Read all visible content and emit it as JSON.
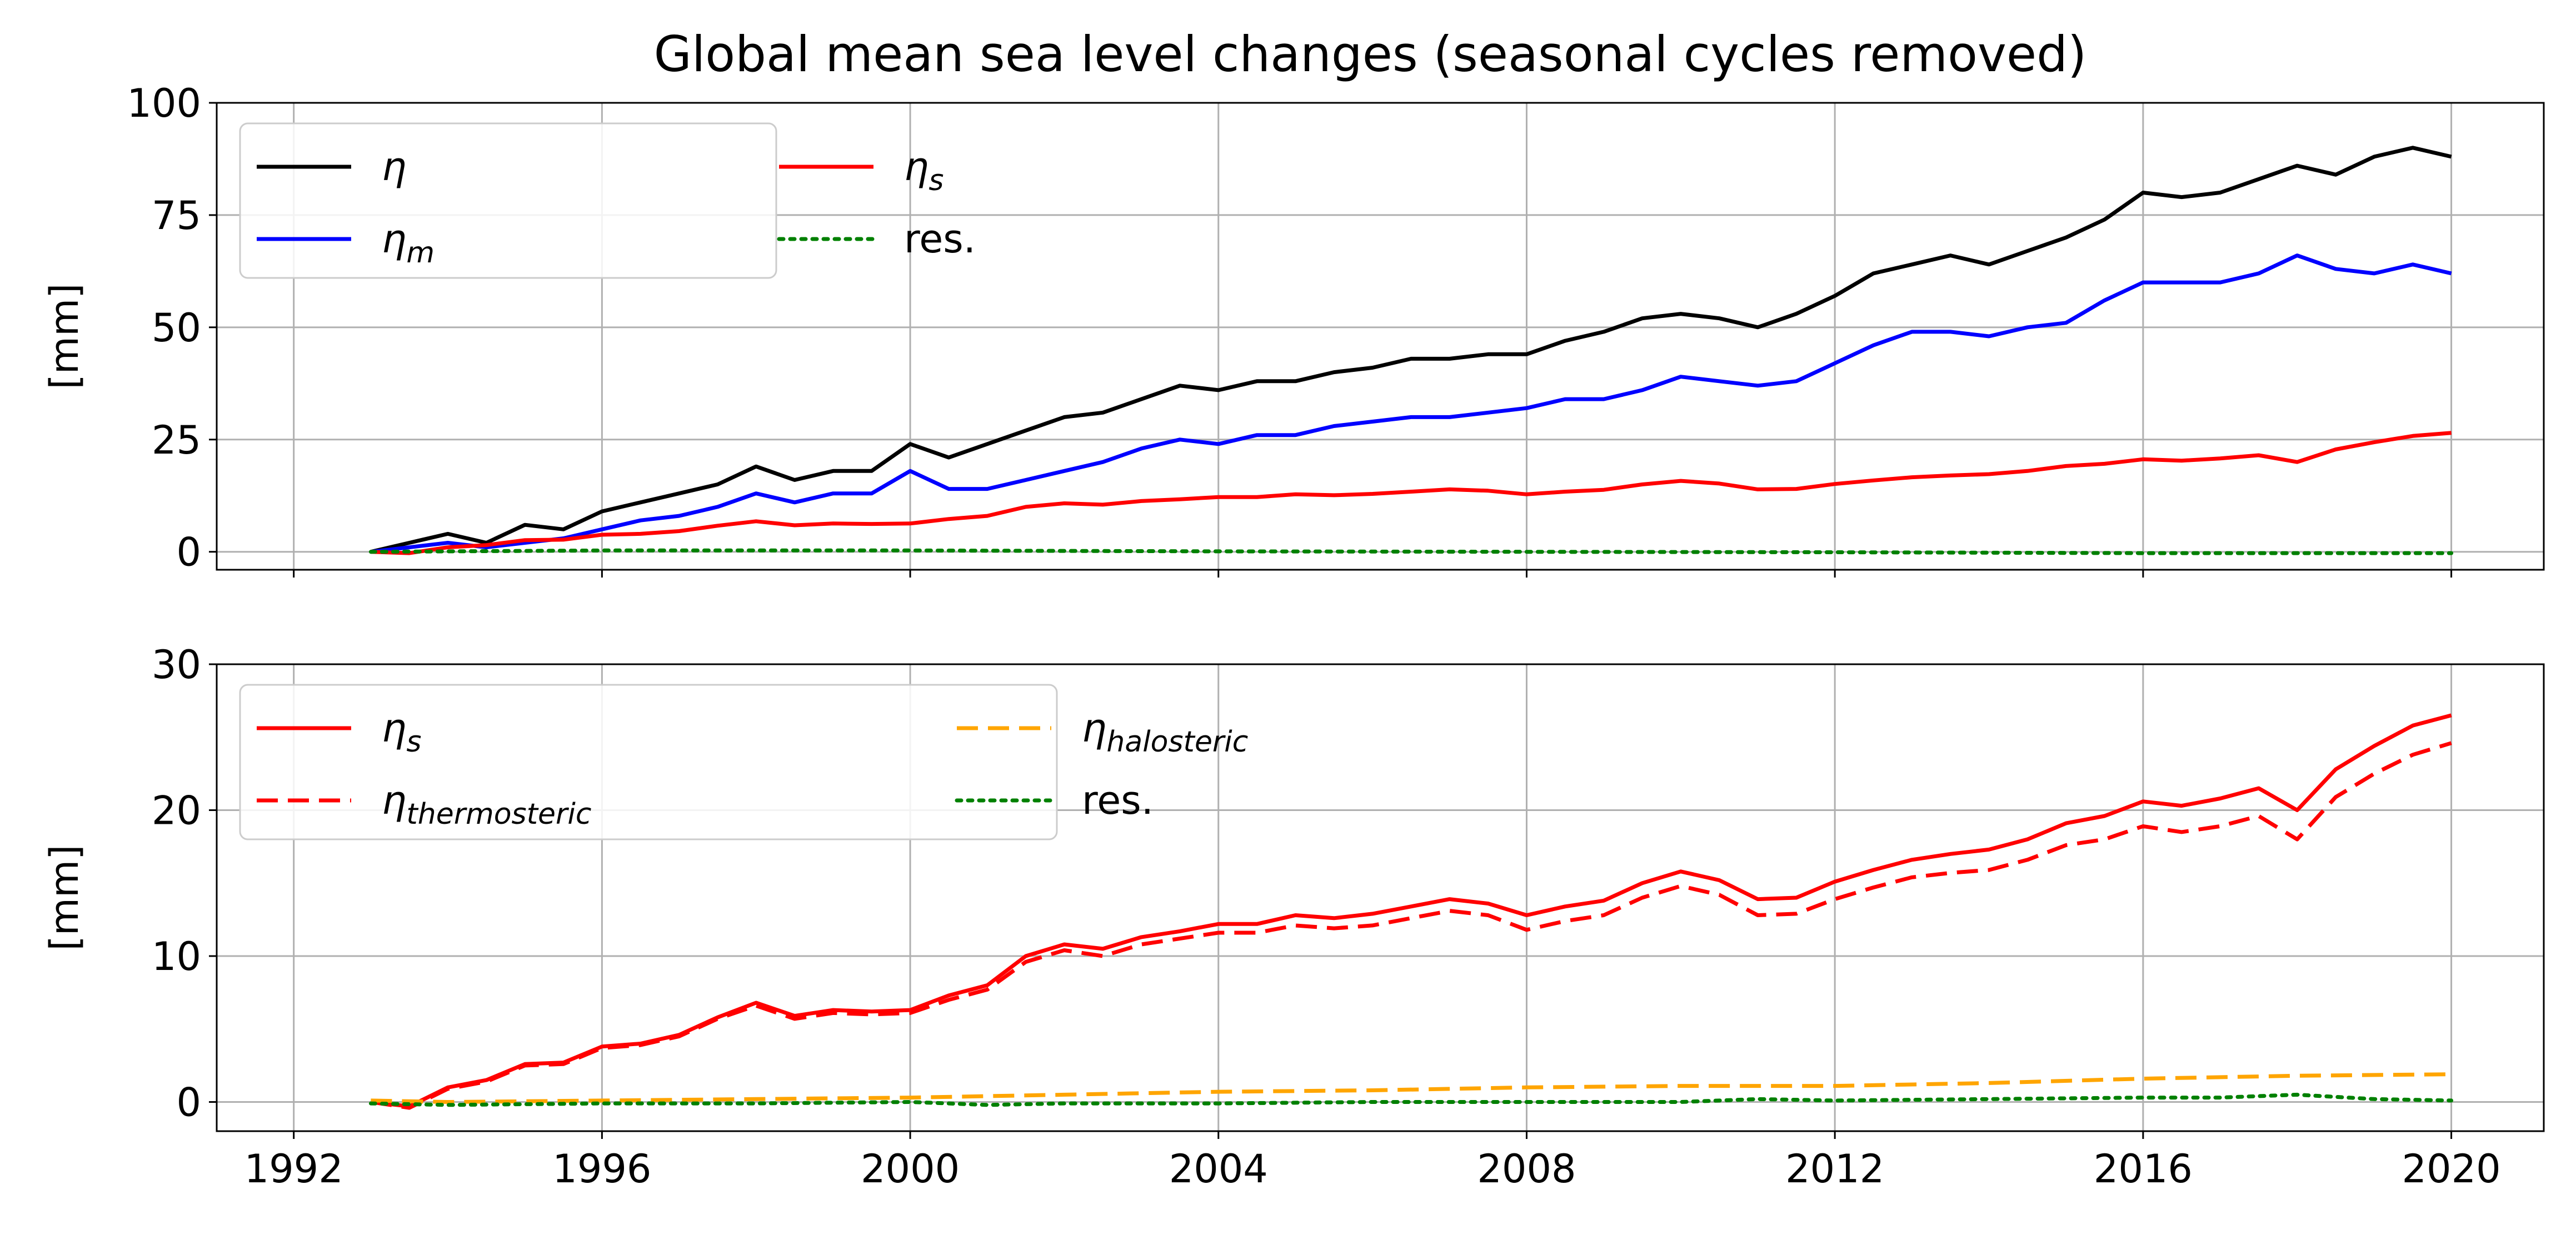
{
  "chart_data": {
    "type": "line",
    "title": "Global mean sea level changes (seasonal cycles removed)",
    "xlim": [
      1991.0,
      2021.2
    ],
    "x_ticks": [
      "1992",
      "1996",
      "2000",
      "2004",
      "2008",
      "2012",
      "2016",
      "2020"
    ],
    "grid": true,
    "panels": [
      {
        "ylabel": "[mm]",
        "ylim": [
          -4,
          100
        ],
        "y_ticks": [
          "0",
          "25",
          "50",
          "75",
          "100"
        ],
        "legend_position": "top-left",
        "legend_columns": 2,
        "series": [
          {
            "name": "η",
            "sub": "",
            "color": "#000000",
            "dash": "solid",
            "x": [
              1993.0,
              1993.5,
              1994.0,
              1994.5,
              1995.0,
              1995.5,
              1996.0,
              1996.5,
              1997.0,
              1997.5,
              1998.0,
              1998.5,
              1999.0,
              1999.5,
              2000.0,
              2000.5,
              2001.0,
              2001.5,
              2002.0,
              2002.5,
              2003.0,
              2003.5,
              2004.0,
              2004.5,
              2005.0,
              2005.5,
              2006.0,
              2006.5,
              2007.0,
              2007.5,
              2008.0,
              2008.5,
              2009.0,
              2009.5,
              2010.0,
              2010.5,
              2011.0,
              2011.5,
              2012.0,
              2012.5,
              2013.0,
              2013.5,
              2014.0,
              2014.5,
              2015.0,
              2015.5,
              2016.0,
              2016.5,
              2017.0,
              2017.5,
              2018.0,
              2018.5,
              2019.0,
              2019.5,
              2020.0
            ],
            "y": [
              0,
              2,
              4,
              2,
              6,
              5,
              9,
              11,
              13,
              15,
              19,
              16,
              18,
              18,
              24,
              21,
              24,
              27,
              30,
              31,
              34,
              37,
              36,
              38,
              38,
              40,
              41,
              43,
              43,
              44,
              44,
              47,
              49,
              52,
              53,
              52,
              50,
              53,
              57,
              62,
              64,
              66,
              64,
              67,
              70,
              74,
              80,
              79,
              80,
              83,
              86,
              84,
              88,
              90,
              88
            ]
          },
          {
            "name": "η",
            "sub": "m",
            "color": "#0000ff",
            "dash": "solid",
            "x": [
              1993.0,
              1993.5,
              1994.0,
              1994.5,
              1995.0,
              1995.5,
              1996.0,
              1996.5,
              1997.0,
              1997.5,
              1998.0,
              1998.5,
              1999.0,
              1999.5,
              2000.0,
              2000.5,
              2001.0,
              2001.5,
              2002.0,
              2002.5,
              2003.0,
              2003.5,
              2004.0,
              2004.5,
              2005.0,
              2005.5,
              2006.0,
              2006.5,
              2007.0,
              2007.5,
              2008.0,
              2008.5,
              2009.0,
              2009.5,
              2010.0,
              2010.5,
              2011.0,
              2011.5,
              2012.0,
              2012.5,
              2013.0,
              2013.5,
              2014.0,
              2014.5,
              2015.0,
              2015.5,
              2016.0,
              2016.5,
              2017.0,
              2017.5,
              2018.0,
              2018.5,
              2019.0,
              2019.5,
              2020.0
            ],
            "y": [
              0,
              1,
              2,
              1,
              2,
              3,
              5,
              7,
              8,
              10,
              13,
              11,
              13,
              13,
              18,
              14,
              14,
              16,
              18,
              20,
              23,
              25,
              24,
              26,
              26,
              28,
              29,
              30,
              30,
              31,
              32,
              34,
              34,
              36,
              39,
              38,
              37,
              38,
              42,
              46,
              49,
              49,
              48,
              50,
              51,
              56,
              60,
              60,
              60,
              62,
              66,
              63,
              62,
              64,
              62
            ]
          },
          {
            "name": "η",
            "sub": "s",
            "color": "#ff0000",
            "dash": "solid",
            "x": [
              1993.0,
              1993.5,
              1994.0,
              1994.5,
              1995.0,
              1995.5,
              1996.0,
              1996.5,
              1997.0,
              1997.5,
              1998.0,
              1998.5,
              1999.0,
              1999.5,
              2000.0,
              2000.5,
              2001.0,
              2001.5,
              2002.0,
              2002.5,
              2003.0,
              2003.5,
              2004.0,
              2004.5,
              2005.0,
              2005.5,
              2006.0,
              2006.5,
              2007.0,
              2007.5,
              2008.0,
              2008.5,
              2009.0,
              2009.5,
              2010.0,
              2010.5,
              2011.0,
              2011.5,
              2012.0,
              2012.5,
              2013.0,
              2013.5,
              2014.0,
              2014.5,
              2015.0,
              2015.5,
              2016.0,
              2016.5,
              2017.0,
              2017.5,
              2018.0,
              2018.5,
              2019.0,
              2019.5,
              2020.0
            ],
            "y": [
              0,
              -0.3,
              1.0,
              1.5,
              2.6,
              2.7,
              3.8,
              4.0,
              4.6,
              5.8,
              6.8,
              5.9,
              6.3,
              6.2,
              6.3,
              7.3,
              8.0,
              10.0,
              10.8,
              10.5,
              11.3,
              11.7,
              12.2,
              12.2,
              12.8,
              12.6,
              12.9,
              13.4,
              13.9,
              13.6,
              12.8,
              13.4,
              13.8,
              15.0,
              15.8,
              15.2,
              13.9,
              14.0,
              15.1,
              15.9,
              16.6,
              17.0,
              17.3,
              18.0,
              19.1,
              19.6,
              20.6,
              20.3,
              20.8,
              21.5,
              20.0,
              22.8,
              24.4,
              25.8,
              26.5
            ]
          },
          {
            "name": "res.",
            "sub": "",
            "color": "#008000",
            "dash": "dotted",
            "x": [
              1993.0,
              1996.0,
              2000.0,
              2004.0,
              2008.0,
              2012.0,
              2016.0,
              2020.0
            ],
            "y": [
              0,
              0.3,
              0.3,
              0.1,
              0.0,
              -0.1,
              -0.3,
              -0.3
            ]
          }
        ]
      },
      {
        "ylabel": "[mm]",
        "ylim": [
          -2,
          30
        ],
        "y_ticks": [
          "0",
          "10",
          "20",
          "30"
        ],
        "legend_position": "top-left",
        "legend_columns": 2,
        "series": [
          {
            "name": "η",
            "sub": "s",
            "color": "#ff0000",
            "dash": "solid",
            "x": [
              1993.0,
              1993.5,
              1994.0,
              1994.5,
              1995.0,
              1995.5,
              1996.0,
              1996.5,
              1997.0,
              1997.5,
              1998.0,
              1998.5,
              1999.0,
              1999.5,
              2000.0,
              2000.5,
              2001.0,
              2001.5,
              2002.0,
              2002.5,
              2003.0,
              2003.5,
              2004.0,
              2004.5,
              2005.0,
              2005.5,
              2006.0,
              2006.5,
              2007.0,
              2007.5,
              2008.0,
              2008.5,
              2009.0,
              2009.5,
              2010.0,
              2010.5,
              2011.0,
              2011.5,
              2012.0,
              2012.5,
              2013.0,
              2013.5,
              2014.0,
              2014.5,
              2015.0,
              2015.5,
              2016.0,
              2016.5,
              2017.0,
              2017.5,
              2018.0,
              2018.5,
              2019.0,
              2019.5,
              2020.0
            ],
            "y": [
              0,
              -0.3,
              1.0,
              1.5,
              2.6,
              2.7,
              3.8,
              4.0,
              4.6,
              5.8,
              6.8,
              5.9,
              6.3,
              6.2,
              6.3,
              7.3,
              8.0,
              10.0,
              10.8,
              10.5,
              11.3,
              11.7,
              12.2,
              12.2,
              12.8,
              12.6,
              12.9,
              13.4,
              13.9,
              13.6,
              12.8,
              13.4,
              13.8,
              15.0,
              15.8,
              15.2,
              13.9,
              14.0,
              15.1,
              15.9,
              16.6,
              17.0,
              17.3,
              18.0,
              19.1,
              19.6,
              20.6,
              20.3,
              20.8,
              21.5,
              20.0,
              22.8,
              24.4,
              25.8,
              26.5
            ]
          },
          {
            "name": "η",
            "sub": "thermosteric",
            "color": "#ff0000",
            "dash": "dashed",
            "x": [
              1993.0,
              1993.5,
              1994.0,
              1994.5,
              1995.0,
              1995.5,
              1996.0,
              1996.5,
              1997.0,
              1997.5,
              1998.0,
              1998.5,
              1999.0,
              1999.5,
              2000.0,
              2000.5,
              2001.0,
              2001.5,
              2002.0,
              2002.5,
              2003.0,
              2003.5,
              2004.0,
              2004.5,
              2005.0,
              2005.5,
              2006.0,
              2006.5,
              2007.0,
              2007.5,
              2008.0,
              2008.5,
              2009.0,
              2009.5,
              2010.0,
              2010.5,
              2011.0,
              2011.5,
              2012.0,
              2012.5,
              2013.0,
              2013.5,
              2014.0,
              2014.5,
              2015.0,
              2015.5,
              2016.0,
              2016.5,
              2017.0,
              2017.5,
              2018.0,
              2018.5,
              2019.0,
              2019.5,
              2020.0
            ],
            "y": [
              0,
              -0.4,
              0.9,
              1.4,
              2.5,
              2.6,
              3.7,
              3.9,
              4.5,
              5.7,
              6.6,
              5.7,
              6.1,
              6.0,
              6.1,
              7.0,
              7.7,
              9.6,
              10.4,
              10.0,
              10.8,
              11.2,
              11.6,
              11.6,
              12.1,
              11.9,
              12.1,
              12.6,
              13.1,
              12.8,
              11.8,
              12.4,
              12.8,
              14.0,
              14.8,
              14.2,
              12.8,
              12.9,
              13.9,
              14.7,
              15.4,
              15.7,
              15.9,
              16.6,
              17.6,
              18.0,
              18.9,
              18.5,
              18.9,
              19.6,
              18.0,
              20.9,
              22.5,
              23.8,
              24.6
            ]
          },
          {
            "name": "η",
            "sub": "halosteric",
            "color": "#ffa500",
            "dash": "dashed",
            "x": [
              1993.0,
              1994.0,
              1996.0,
              1998.0,
              2000.0,
              2002.0,
              2004.0,
              2006.0,
              2008.0,
              2010.0,
              2012.0,
              2014.0,
              2016.0,
              2018.0,
              2020.0
            ],
            "y": [
              0.1,
              0.0,
              0.1,
              0.2,
              0.3,
              0.5,
              0.7,
              0.8,
              1.0,
              1.1,
              1.1,
              1.3,
              1.6,
              1.8,
              1.9
            ]
          },
          {
            "name": "res.",
            "sub": "",
            "color": "#008000",
            "dash": "dotted",
            "x": [
              1993.0,
              1994.0,
              1996.0,
              1998.0,
              2000.0,
              2001.0,
              2002.0,
              2004.0,
              2006.0,
              2008.0,
              2010.0,
              2011.0,
              2012.0,
              2014.0,
              2016.0,
              2017.0,
              2018.0,
              2019.0,
              2020.0
            ],
            "y": [
              -0.1,
              -0.2,
              -0.1,
              -0.1,
              0.0,
              -0.2,
              -0.1,
              -0.1,
              0.0,
              0.0,
              0.0,
              0.2,
              0.1,
              0.2,
              0.3,
              0.3,
              0.5,
              0.2,
              0.1
            ]
          }
        ]
      }
    ]
  }
}
